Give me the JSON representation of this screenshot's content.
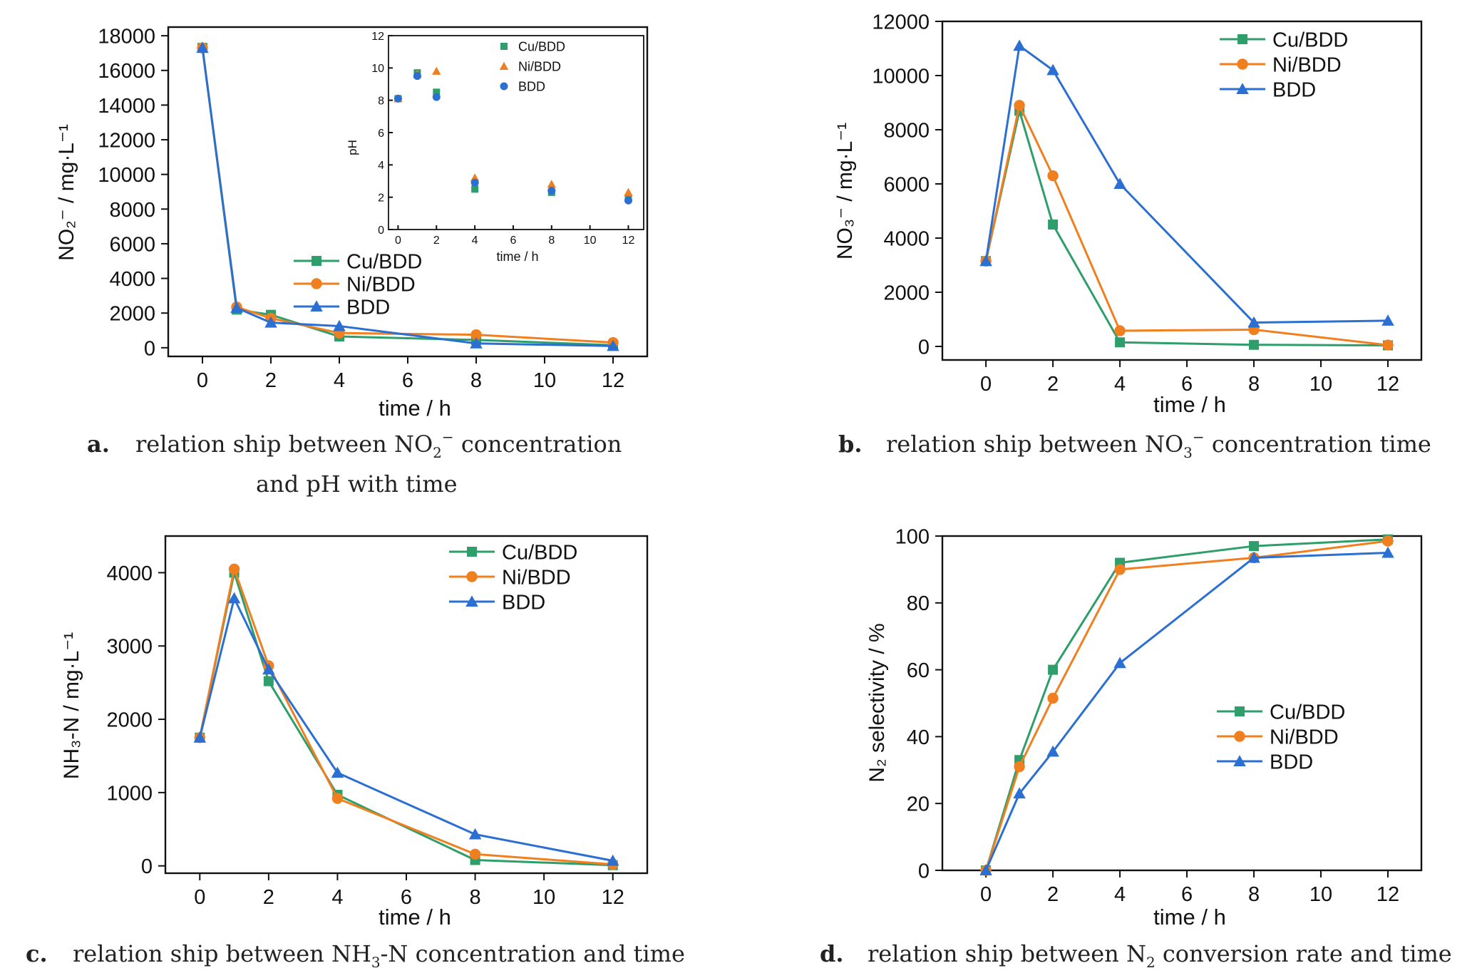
{
  "colors": {
    "cu": "#2e9e6b",
    "ni": "#f07f1f",
    "bdd": "#2a6fd1"
  },
  "chart_data": [
    {
      "id": "a",
      "type": "line",
      "xlabel": "time / h",
      "ylabel": "NO₂⁻ / mg·L⁻¹",
      "xlim": [
        -1,
        13
      ],
      "ylim": [
        -500,
        18500
      ],
      "xticks": [
        0,
        2,
        4,
        6,
        8,
        10,
        12
      ],
      "yticks": [
        0,
        2000,
        4000,
        6000,
        8000,
        10000,
        12000,
        14000,
        16000,
        18000
      ],
      "legend_position": "center",
      "series": [
        {
          "name": "Cu/BDD",
          "marker": "square",
          "x": [
            0,
            1,
            2,
            4,
            8,
            12
          ],
          "y": [
            17300,
            2200,
            1900,
            650,
            450,
            150
          ]
        },
        {
          "name": "Ni/BDD",
          "marker": "circle",
          "x": [
            0,
            1,
            2,
            4,
            8,
            12
          ],
          "y": [
            17300,
            2350,
            1700,
            850,
            750,
            300
          ]
        },
        {
          "name": "BDD",
          "marker": "triangle",
          "x": [
            0,
            1,
            2,
            4,
            8,
            12
          ],
          "y": [
            17300,
            2300,
            1450,
            1250,
            250,
            100
          ]
        }
      ],
      "caption": {
        "label": "a.",
        "line1_pre": "relation ship between NO",
        "line1_sub": "2",
        "line1_sup": "−",
        "line1_post": " concentration",
        "line2": "and pH with time"
      }
    },
    {
      "id": "a-inset",
      "type": "scatter",
      "xlabel": "time / h",
      "ylabel": "pH",
      "xlim": [
        -0.5,
        12.8
      ],
      "ylim": [
        0,
        12
      ],
      "xticks": [
        0,
        2,
        4,
        6,
        8,
        10,
        12
      ],
      "yticks": [
        0,
        2,
        4,
        6,
        8,
        10,
        12
      ],
      "legend_position": "top-right",
      "series": [
        {
          "name": "Cu/BDD",
          "marker": "square",
          "x": [
            0,
            1,
            2,
            4,
            8,
            12
          ],
          "y": [
            8.1,
            9.7,
            8.5,
            2.5,
            2.3,
            1.9
          ]
        },
        {
          "name": "Ni/BDD",
          "marker": "triangle",
          "x": [
            0,
            1,
            2,
            4,
            8,
            12
          ],
          "y": [
            8.1,
            9.6,
            9.8,
            3.2,
            2.8,
            2.3
          ]
        },
        {
          "name": "BDD",
          "marker": "circle",
          "x": [
            0,
            1,
            2,
            4,
            8,
            12
          ],
          "y": [
            8.1,
            9.5,
            8.2,
            2.9,
            2.4,
            1.8
          ]
        }
      ]
    },
    {
      "id": "b",
      "type": "line",
      "xlabel": "time / h",
      "ylabel": "NO₃⁻ / mg·L⁻¹",
      "xlim": [
        -1.3,
        13
      ],
      "ylim": [
        -500,
        12000
      ],
      "xticks": [
        0,
        2,
        4,
        6,
        8,
        10,
        12
      ],
      "yticks": [
        0,
        2000,
        4000,
        6000,
        8000,
        10000,
        12000
      ],
      "legend_position": "top-right",
      "series": [
        {
          "name": "Cu/BDD",
          "marker": "square",
          "x": [
            0,
            1,
            2,
            4,
            8,
            12
          ],
          "y": [
            3150,
            8700,
            4500,
            150,
            60,
            40
          ]
        },
        {
          "name": "Ni/BDD",
          "marker": "circle",
          "x": [
            0,
            1,
            2,
            4,
            8,
            12
          ],
          "y": [
            3150,
            8900,
            6300,
            580,
            620,
            50
          ]
        },
        {
          "name": "BDD",
          "marker": "triangle",
          "x": [
            0,
            1,
            2,
            4,
            8,
            12
          ],
          "y": [
            3150,
            11100,
            10200,
            6000,
            880,
            950
          ]
        }
      ],
      "caption": {
        "label": "b.",
        "line1_pre": "relation ship between NO",
        "line1_sub": "3",
        "line1_sup": "−",
        "line1_post": " concentration time"
      }
    },
    {
      "id": "c",
      "type": "line",
      "xlabel": "time / h",
      "ylabel": "NH₃-N / mg·L⁻¹",
      "xlim": [
        -1,
        13
      ],
      "ylim": [
        -100,
        4500
      ],
      "xticks": [
        0,
        2,
        4,
        6,
        8,
        10,
        12
      ],
      "yticks": [
        0,
        1000,
        2000,
        3000,
        4000
      ],
      "legend_position": "top-right",
      "series": [
        {
          "name": "Cu/BDD",
          "marker": "square",
          "x": [
            0,
            1,
            2,
            4,
            8,
            12
          ],
          "y": [
            1750,
            4000,
            2520,
            970,
            80,
            10
          ]
        },
        {
          "name": "Ni/BDD",
          "marker": "circle",
          "x": [
            0,
            1,
            2,
            4,
            8,
            12
          ],
          "y": [
            1750,
            4050,
            2730,
            920,
            160,
            20
          ]
        },
        {
          "name": "BDD",
          "marker": "triangle",
          "x": [
            0,
            1,
            2,
            4,
            8,
            12
          ],
          "y": [
            1750,
            3650,
            2680,
            1270,
            430,
            70
          ]
        }
      ],
      "caption": {
        "label": "c.",
        "line1_pre": "relation ship between NH",
        "line1_sub": "3",
        "line1_post": "-N concentration and time"
      }
    },
    {
      "id": "d",
      "type": "line",
      "xlabel": "time / h",
      "ylabel": "N₂ selectivity / %",
      "xlim": [
        -1.3,
        13
      ],
      "ylim": [
        0,
        100
      ],
      "xticks": [
        0,
        2,
        4,
        6,
        8,
        10,
        12
      ],
      "yticks": [
        0,
        20,
        40,
        60,
        80,
        100
      ],
      "legend_position": "right",
      "series": [
        {
          "name": "Cu/BDD",
          "marker": "square",
          "x": [
            0,
            1,
            2,
            4,
            8,
            12
          ],
          "y": [
            0,
            33,
            60,
            92,
            97,
            99
          ]
        },
        {
          "name": "Ni/BDD",
          "marker": "circle",
          "x": [
            0,
            1,
            2,
            4,
            8,
            12
          ],
          "y": [
            0,
            31,
            51.5,
            90,
            93.5,
            98.5
          ]
        },
        {
          "name": "BDD",
          "marker": "triangle",
          "x": [
            0,
            1,
            2,
            4,
            8,
            12
          ],
          "y": [
            0,
            23,
            35.5,
            62,
            93.5,
            95
          ]
        }
      ],
      "caption": {
        "label": "d.",
        "line1_pre": "relation ship between N",
        "line1_sub": "2",
        "line1_post": " conversion rate and time"
      }
    }
  ]
}
